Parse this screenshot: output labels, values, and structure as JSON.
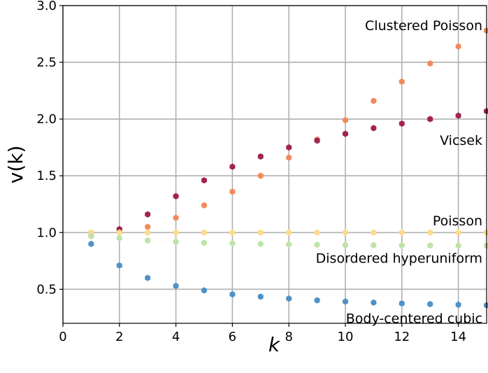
{
  "chart_data": {
    "type": "scatter",
    "xlabel": "k",
    "ylabel": "v(k)",
    "xlim": [
      0,
      15
    ],
    "ylim": [
      0.2,
      3.0
    ],
    "xticks": [
      0,
      2,
      4,
      6,
      8,
      10,
      12,
      14
    ],
    "yticks": [
      0.5,
      1.0,
      1.5,
      2.0,
      2.5,
      3.0
    ],
    "xtick_labels": [
      "0",
      "2",
      "4",
      "6",
      "8",
      "10",
      "12",
      "14"
    ],
    "ytick_labels": [
      "0.5",
      "1.0",
      "1.5",
      "2.0",
      "2.5",
      "3.0"
    ],
    "grid": true,
    "legend": "none",
    "x": [
      1,
      2,
      3,
      4,
      5,
      6,
      7,
      8,
      9,
      10,
      11,
      12,
      13,
      14,
      15
    ],
    "series": [
      {
        "name": "Clustered Poisson",
        "color": "#f08a5d",
        "values": [
          1.0,
          1.01,
          1.05,
          1.13,
          1.24,
          1.36,
          1.5,
          1.66,
          1.82,
          1.99,
          2.16,
          2.33,
          2.49,
          2.64,
          2.78
        ]
      },
      {
        "name": "Vicsek",
        "color": "#a3234f",
        "values": [
          0.97,
          1.03,
          1.16,
          1.32,
          1.46,
          1.58,
          1.67,
          1.75,
          1.81,
          1.87,
          1.92,
          1.96,
          2.0,
          2.03,
          2.07
        ]
      },
      {
        "name": "Poisson",
        "color": "#fcdc8b",
        "values": [
          1.0,
          1.0,
          1.0,
          1.0,
          1.0,
          1.0,
          1.0,
          1.0,
          1.0,
          1.0,
          1.0,
          1.0,
          1.0,
          1.0,
          1.0
        ]
      },
      {
        "name": "Disordered hyperuniform",
        "color": "#bfe3a8",
        "values": [
          0.97,
          0.95,
          0.93,
          0.92,
          0.91,
          0.905,
          0.9,
          0.895,
          0.893,
          0.89,
          0.888,
          0.887,
          0.886,
          0.885,
          0.884
        ]
      },
      {
        "name": "Body-centered cubic",
        "color": "#4f91c6",
        "values": [
          0.9,
          0.71,
          0.6,
          0.53,
          0.49,
          0.455,
          0.435,
          0.418,
          0.403,
          0.392,
          0.383,
          0.375,
          0.369,
          0.364,
          0.359
        ]
      }
    ],
    "annotations": [
      {
        "text": "Clustered Poisson",
        "x": 15,
        "y": 2.82
      },
      {
        "text": "Vicsek",
        "x": 15,
        "y": 1.81
      },
      {
        "text": "Poisson",
        "x": 15,
        "y": 1.1
      },
      {
        "text": "Disordered hyperuniform",
        "x": 15,
        "y": 0.77
      },
      {
        "text": "Body-centered cubic",
        "x": 15,
        "y": 0.24
      }
    ]
  }
}
